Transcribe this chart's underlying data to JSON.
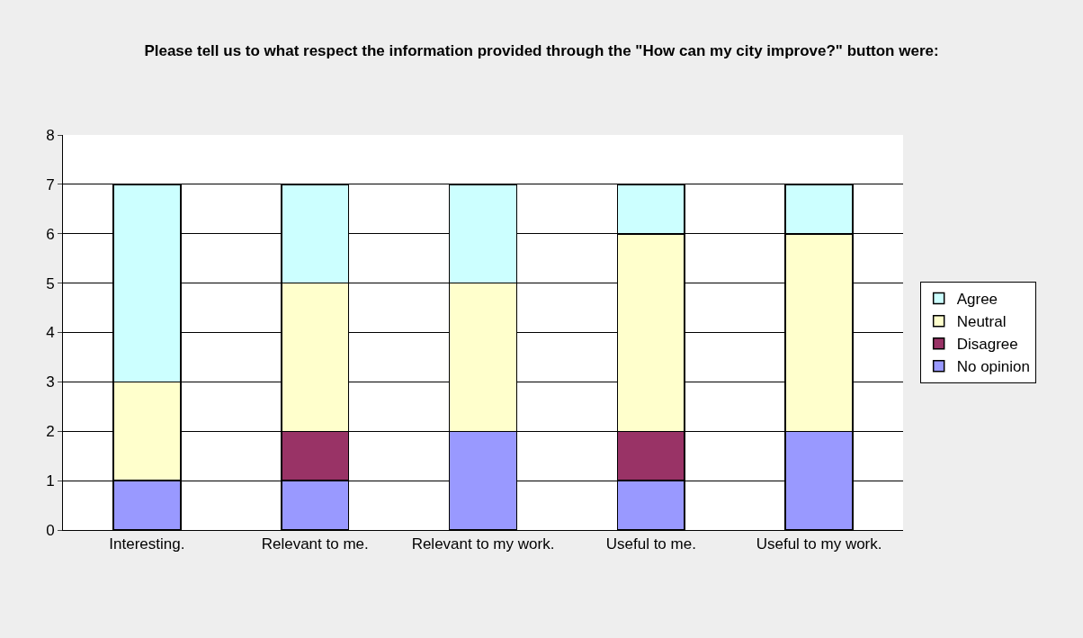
{
  "chart_data": {
    "type": "bar",
    "title": "Please tell us to what respect the information provided through the \"How can my city improve?\" button were:",
    "categories": [
      "Interesting.",
      "Relevant to me.",
      "Relevant to my work.",
      "Useful to me.",
      "Useful to my work."
    ],
    "stacked": true,
    "series": [
      {
        "name": "No opinion",
        "color": "#9999ff",
        "values": [
          1,
          1,
          2,
          1,
          2
        ]
      },
      {
        "name": "Disagree",
        "color": "#993366",
        "values": [
          0,
          1,
          0,
          1,
          0
        ]
      },
      {
        "name": "Neutral",
        "color": "#ffffcc",
        "values": [
          2,
          3,
          3,
          4,
          4
        ]
      },
      {
        "name": "Agree",
        "color": "#ccffff",
        "values": [
          4,
          2,
          2,
          1,
          1
        ]
      }
    ],
    "ylim": [
      0,
      8
    ],
    "yticks": [
      0,
      1,
      2,
      3,
      4,
      5,
      6,
      7,
      8
    ],
    "grid": "y",
    "legend": "right"
  }
}
